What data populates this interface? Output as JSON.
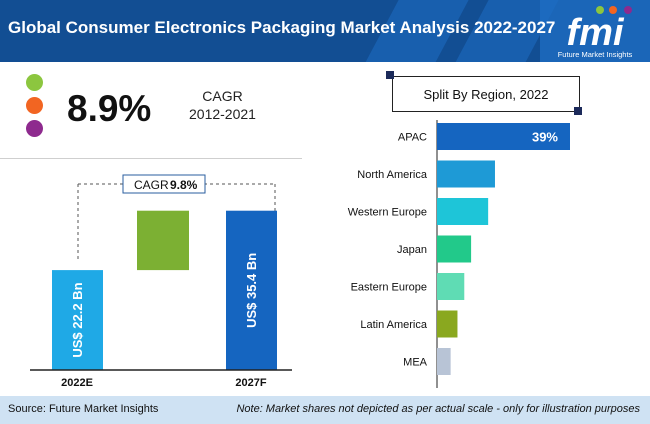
{
  "header": {
    "title": "Global Consumer Electronics Packaging Market Analysis 2022-2027",
    "logo_text": "fmi",
    "logo_caption": "Future Market Insights"
  },
  "summary": {
    "cagr_value": "8.9%",
    "cagr_label": "CAGR",
    "cagr_period": "2012-2021",
    "dot_colors": [
      "#8cc63f",
      "#f26522",
      "#8e2a8e"
    ]
  },
  "colors": {
    "header_bg": "#1b66b8",
    "bar_2022": "#1fa9e6",
    "bar_growth": "#7cb033",
    "bar_2027": "#1565c0"
  },
  "chart_data": [
    {
      "type": "bar",
      "title": "",
      "categories": [
        "2022E",
        "2027F"
      ],
      "values": [
        22.2,
        35.4
      ],
      "value_labels": [
        "US$ 22.2 Bn",
        "US$ 35.4 Bn"
      ],
      "annotation": {
        "label": "CAGR",
        "value": "9.8%"
      },
      "unit": "US$ Bn"
    },
    {
      "type": "bar",
      "orientation": "horizontal",
      "title": "Split By Region, 2022",
      "categories": [
        "APAC",
        "North America",
        "Western Europe",
        "Japan",
        "Eastern Europe",
        "Latin America",
        "MEA"
      ],
      "values": [
        39,
        17,
        15,
        10,
        8,
        6,
        4
      ],
      "data_labels": [
        "39%",
        "",
        "",
        "",
        "",
        "",
        ""
      ],
      "colors": [
        "#1565c0",
        "#1e9ad6",
        "#1ec5d8",
        "#22c98a",
        "#5fdcb4",
        "#8aa81f",
        "#b8c4d6"
      ]
    }
  ],
  "footer": {
    "source": "Source: Future Market Insights",
    "note": "Note: Market shares not depicted as per actual scale - only for illustration purposes"
  }
}
